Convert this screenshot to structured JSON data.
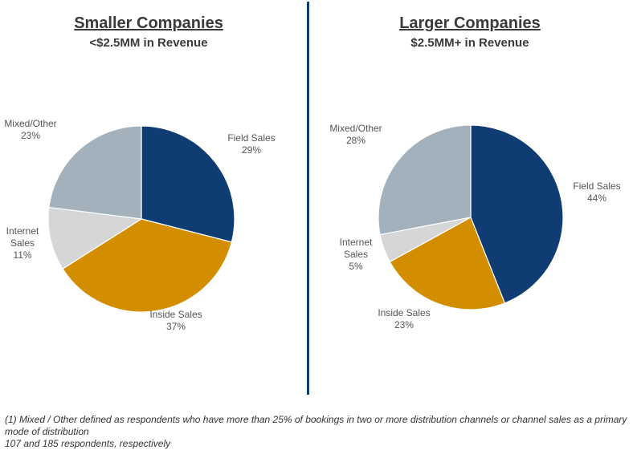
{
  "chart_data": [
    {
      "type": "pie",
      "title": "Smaller Companies",
      "subtitle": "<$2.5MM in Revenue",
      "slices": [
        {
          "name": "Field Sales",
          "value": 29,
          "label": [
            "Field Sales",
            "29%"
          ],
          "color": "#0f3d73"
        },
        {
          "name": "Inside Sales",
          "value": 37,
          "label": [
            "Inside Sales",
            "37%"
          ],
          "color": "#d38e00"
        },
        {
          "name": "Internet Sales",
          "value": 11,
          "label": [
            "Internet",
            "Sales",
            "11%"
          ],
          "color": "#d6d6d6"
        },
        {
          "name": "Mixed/Other",
          "value": 23,
          "label": [
            "Mixed/Other",
            "23%"
          ],
          "color": "#a2b1bb"
        }
      ]
    },
    {
      "type": "pie",
      "title": "Larger Companies",
      "subtitle": "$2.5MM+ in Revenue",
      "slices": [
        {
          "name": "Field Sales",
          "value": 44,
          "label": [
            "Field Sales",
            "44%"
          ],
          "color": "#0f3d73"
        },
        {
          "name": "Inside Sales",
          "value": 23,
          "label": [
            "Inside Sales",
            "23%"
          ],
          "color": "#d38e00"
        },
        {
          "name": "Internet Sales",
          "value": 5,
          "label": [
            "Internet",
            "Sales",
            "5%"
          ],
          "color": "#d6d6d6"
        },
        {
          "name": "Mixed/Other",
          "value": 28,
          "label": [
            "Mixed/Other",
            "28%"
          ],
          "color": "#a2b1bb"
        }
      ]
    }
  ],
  "footnote": {
    "line1": "(1) Mixed / Other defined as respondents who have more than 25% of bookings in two or more distribution channels or channel sales as a primary mode of distribution",
    "line2": "107 and 185 respondents, respectively"
  }
}
